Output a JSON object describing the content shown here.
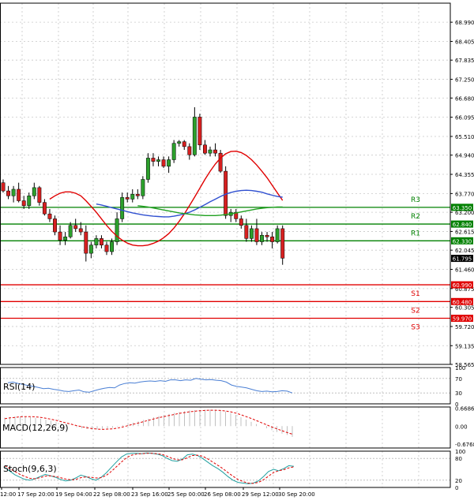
{
  "chart_data": [
    {
      "type": "candlestick",
      "panel": "price",
      "ylim": [
        58.565,
        69.57
      ],
      "y_ticks": [
        "68.990",
        "68.405",
        "67.835",
        "67.250",
        "66.680",
        "66.095",
        "65.510",
        "64.940",
        "64.355",
        "63.770",
        "63.200",
        "62.615",
        "62.045",
        "61.460",
        "60.875",
        "60.305",
        "59.720",
        "59.135",
        "58.565"
      ],
      "x_ticks": [
        "12:00",
        "17 Sep 20:00",
        "19 Sep 04:00",
        "22 Sep 08:00",
        "23 Sep 16:00",
        "25 Sep 00:00",
        "26 Sep 08:00",
        "29 Sep 12:00",
        "30 Sep 20:00"
      ],
      "current_price": "61.795",
      "levels": [
        {
          "name": "R3",
          "value": 63.35,
          "label": "63.350",
          "color": "#008000"
        },
        {
          "name": "R2",
          "value": 62.84,
          "label": "62.840",
          "color": "#008000"
        },
        {
          "name": "R1",
          "value": 62.33,
          "label": "62.330",
          "color": "#008000"
        },
        {
          "name": "S1",
          "value": 60.99,
          "label": "60.990",
          "color": "#e00000"
        },
        {
          "name": "S2",
          "value": 60.48,
          "label": "60.480",
          "color": "#e00000"
        },
        {
          "name": "S3",
          "value": 59.97,
          "label": "59.970",
          "color": "#e00000"
        }
      ],
      "candles": [
        [
          64.1,
          64.2,
          63.8,
          63.85
        ],
        [
          63.85,
          64.0,
          63.6,
          63.7
        ],
        [
          63.7,
          64.0,
          63.5,
          63.9
        ],
        [
          63.9,
          64.1,
          63.5,
          63.55
        ],
        [
          63.55,
          63.7,
          63.3,
          63.4
        ],
        [
          63.4,
          63.8,
          63.3,
          63.7
        ],
        [
          63.7,
          64.1,
          63.6,
          63.95
        ],
        [
          63.95,
          64.0,
          63.4,
          63.5
        ],
        [
          63.5,
          63.6,
          63.1,
          63.15
        ],
        [
          63.15,
          63.3,
          62.9,
          63.0
        ],
        [
          63.0,
          63.1,
          62.5,
          62.6
        ],
        [
          62.6,
          62.8,
          62.2,
          62.35
        ],
        [
          62.35,
          62.6,
          62.2,
          62.45
        ],
        [
          62.45,
          62.9,
          62.4,
          62.8
        ],
        [
          62.8,
          63.0,
          62.6,
          62.7
        ],
        [
          62.7,
          62.9,
          62.5,
          62.6
        ],
        [
          62.6,
          62.8,
          61.7,
          61.95
        ],
        [
          61.95,
          62.3,
          61.8,
          62.2
        ],
        [
          62.2,
          62.5,
          62.1,
          62.4
        ],
        [
          62.4,
          62.5,
          62.1,
          62.2
        ],
        [
          62.2,
          62.3,
          61.9,
          62.0
        ],
        [
          62.0,
          62.4,
          61.9,
          62.3
        ],
        [
          62.3,
          63.2,
          62.2,
          63.0
        ],
        [
          63.0,
          63.8,
          62.9,
          63.65
        ],
        [
          63.65,
          63.8,
          63.5,
          63.6
        ],
        [
          63.6,
          63.9,
          63.5,
          63.75
        ],
        [
          63.75,
          63.9,
          63.6,
          63.7
        ],
        [
          63.7,
          64.3,
          63.6,
          64.2
        ],
        [
          64.2,
          65.0,
          64.1,
          64.85
        ],
        [
          64.85,
          65.0,
          64.6,
          64.75
        ],
        [
          64.75,
          64.9,
          64.6,
          64.8
        ],
        [
          64.8,
          64.9,
          64.55,
          64.6
        ],
        [
          64.6,
          64.9,
          64.4,
          64.8
        ],
        [
          64.8,
          65.4,
          64.7,
          65.3
        ],
        [
          65.3,
          65.4,
          65.2,
          65.35
        ],
        [
          65.35,
          65.4,
          65.1,
          65.2
        ],
        [
          65.2,
          65.3,
          64.8,
          64.95
        ],
        [
          64.95,
          66.4,
          64.9,
          66.1
        ],
        [
          66.1,
          66.2,
          65.1,
          65.25
        ],
        [
          65.25,
          65.4,
          64.95,
          65.0
        ],
        [
          65.0,
          65.2,
          64.9,
          65.1
        ],
        [
          65.1,
          65.3,
          64.9,
          65.0
        ],
        [
          65.0,
          65.1,
          64.4,
          64.45
        ],
        [
          64.45,
          64.6,
          63.0,
          63.1
        ],
        [
          63.1,
          63.3,
          62.9,
          63.2
        ],
        [
          63.2,
          63.3,
          62.9,
          63.0
        ],
        [
          63.0,
          63.1,
          62.7,
          62.8
        ],
        [
          62.8,
          63.0,
          62.3,
          62.4
        ],
        [
          62.4,
          62.8,
          62.3,
          62.7
        ],
        [
          62.7,
          63.0,
          62.2,
          62.3
        ],
        [
          62.3,
          62.6,
          62.2,
          62.5
        ],
        [
          62.5,
          62.6,
          62.3,
          62.45
        ],
        [
          62.45,
          62.6,
          62.1,
          62.3
        ],
        [
          62.3,
          62.8,
          62.25,
          62.7
        ],
        [
          62.7,
          62.8,
          61.6,
          61.8
        ]
      ],
      "moving_averages": [
        {
          "color": "#e00000",
          "values": [
            63.6,
            63.7,
            63.78,
            63.82,
            63.82,
            63.78,
            63.7,
            63.55,
            63.38,
            63.2,
            63.0,
            62.8,
            62.62,
            62.47,
            62.35,
            62.26,
            62.2,
            62.18,
            62.18,
            62.2,
            62.25,
            62.32,
            62.42,
            62.55,
            62.72,
            62.92,
            63.15,
            63.4,
            63.66,
            63.93,
            64.2,
            64.45,
            64.67,
            64.85,
            64.98,
            65.05,
            65.06,
            65.02,
            64.93,
            64.8,
            64.64,
            64.45,
            64.25,
            64.02,
            63.79,
            63.56
          ]
        },
        {
          "color": "#3050d0",
          "values": [
            63.45,
            63.42,
            63.38,
            63.34,
            63.3,
            63.26,
            63.22,
            63.18,
            63.15,
            63.12,
            63.1,
            63.08,
            63.07,
            63.06,
            63.06,
            63.08,
            63.11,
            63.15,
            63.2,
            63.27,
            63.35,
            63.43,
            63.52,
            63.6,
            63.68,
            63.75,
            63.8,
            63.84,
            63.86,
            63.87,
            63.86,
            63.84,
            63.81,
            63.76,
            63.72,
            63.68,
            63.66
          ]
        },
        {
          "color": "#20a020",
          "values": [
            63.4,
            63.38,
            63.36,
            63.33,
            63.3,
            63.27,
            63.24,
            63.21,
            63.18,
            63.16,
            63.14,
            63.12,
            63.11,
            63.1,
            63.1,
            63.1,
            63.11,
            63.13,
            63.15,
            63.18,
            63.21,
            63.24,
            63.27,
            63.3,
            63.32,
            63.34,
            63.35,
            63.36,
            63.36
          ]
        }
      ]
    },
    {
      "type": "line",
      "panel": "rsi",
      "title": "RSI(14)",
      "ylim": [
        0,
        100
      ],
      "y_ticks": [
        "100",
        "70",
        "30",
        "0"
      ],
      "series": [
        {
          "color": "#4a7fd4",
          "values": [
            58,
            60,
            56,
            54,
            50,
            48,
            45,
            42,
            43,
            40,
            38,
            35,
            34,
            36,
            38,
            33,
            32,
            36,
            40,
            43,
            45,
            44,
            52,
            56,
            58,
            57,
            60,
            62,
            63,
            62,
            64,
            62,
            66,
            66,
            64,
            66,
            65,
            70,
            68,
            66,
            67,
            65,
            64,
            60,
            52,
            48,
            46,
            44,
            40,
            36,
            34,
            35,
            33,
            34,
            36,
            35,
            30
          ]
        }
      ]
    },
    {
      "type": "bar",
      "panel": "macd",
      "title": "MACD(12,26,9)",
      "ylim": [
        -0.82,
        0.72
      ],
      "y_ticks": [
        "0.6686",
        "0.00",
        "-0.6768"
      ],
      "series": [
        {
          "name": "histogram",
          "color": "#c0c0c0",
          "values": [
            0.32,
            0.34,
            0.36,
            0.36,
            0.35,
            0.34,
            0.31,
            0.28,
            0.24,
            0.2,
            0.15,
            0.1,
            0.05,
            0.0,
            -0.04,
            -0.08,
            -0.11,
            -0.13,
            -0.12,
            -0.1,
            -0.08,
            -0.06,
            -0.02,
            0.03,
            0.08,
            0.13,
            0.18,
            0.23,
            0.28,
            0.33,
            0.38,
            0.42,
            0.46,
            0.5,
            0.53,
            0.56,
            0.59,
            0.6,
            0.61,
            0.62,
            0.62,
            0.61,
            0.59,
            0.55,
            0.49,
            0.42,
            0.34,
            0.25,
            0.16,
            0.08,
            0.0,
            -0.08,
            -0.15,
            -0.22,
            -0.28,
            -0.33,
            -0.4
          ]
        },
        {
          "name": "signal",
          "color": "#e00000",
          "values": [
            0.28,
            0.31,
            0.33,
            0.35,
            0.36,
            0.36,
            0.35,
            0.33,
            0.3,
            0.26,
            0.22,
            0.17,
            0.12,
            0.07,
            0.02,
            -0.02,
            -0.06,
            -0.09,
            -0.11,
            -0.12,
            -0.11,
            -0.1,
            -0.07,
            -0.03,
            0.02,
            0.07,
            0.12,
            0.17,
            0.22,
            0.27,
            0.32,
            0.36,
            0.4,
            0.44,
            0.48,
            0.51,
            0.54,
            0.56,
            0.58,
            0.59,
            0.6,
            0.6,
            0.59,
            0.57,
            0.54,
            0.49,
            0.43,
            0.36,
            0.29,
            0.21,
            0.13,
            0.05,
            -0.03,
            -0.1,
            -0.17,
            -0.24,
            -0.3
          ]
        }
      ]
    },
    {
      "type": "line",
      "panel": "stoch",
      "title": "Stoch(9,6,3)",
      "ylim": [
        0,
        100
      ],
      "y_ticks": [
        "100",
        "80",
        "20",
        "0"
      ],
      "series": [
        {
          "name": "%K",
          "color": "#20a0a0",
          "values": [
            55,
            45,
            35,
            28,
            22,
            20,
            24,
            30,
            36,
            32,
            28,
            22,
            18,
            20,
            26,
            34,
            30,
            24,
            20,
            28,
            40,
            55,
            70,
            84,
            92,
            94,
            94,
            93,
            95,
            94,
            92,
            88,
            80,
            74,
            72,
            78,
            90,
            92,
            88,
            80,
            70,
            60,
            52,
            42,
            30,
            20,
            14,
            12,
            10,
            12,
            18,
            30,
            44,
            50,
            46,
            52,
            60,
            58
          ]
        },
        {
          "name": "%D",
          "color": "#e00000",
          "values": [
            60,
            52,
            44,
            36,
            30,
            25,
            24,
            27,
            31,
            32,
            30,
            27,
            23,
            21,
            22,
            27,
            29,
            28,
            26,
            27,
            33,
            44,
            57,
            70,
            82,
            89,
            92,
            93,
            94,
            94,
            93,
            91,
            86,
            80,
            76,
            76,
            82,
            88,
            89,
            86,
            79,
            70,
            61,
            52,
            41,
            31,
            22,
            16,
            12,
            11,
            14,
            21,
            31,
            41,
            46,
            49,
            54,
            57
          ]
        }
      ]
    }
  ]
}
